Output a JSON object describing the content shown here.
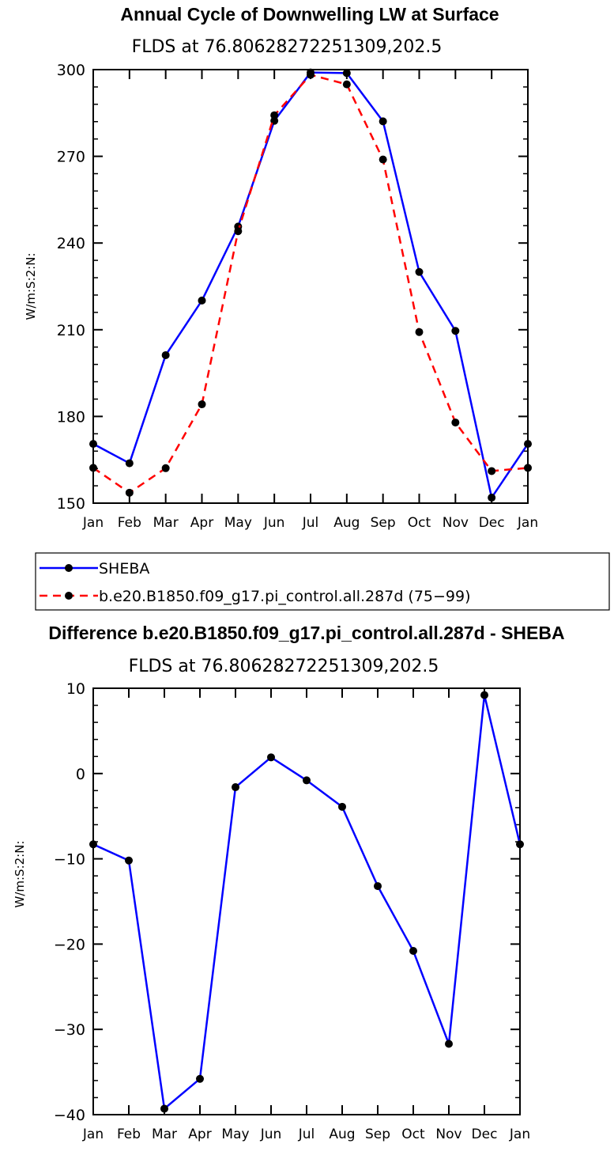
{
  "chart_data": [
    {
      "type": "line",
      "title": "Annual Cycle of Downwelling LW at Surface",
      "subtitle": "FLDS at 76.80628272251309,202.5",
      "ylabel": "W/m:S:2:N:",
      "xlabel": "",
      "categories": [
        "Jan",
        "Feb",
        "Mar",
        "Apr",
        "May",
        "Jun",
        "Jul",
        "Aug",
        "Sep",
        "Oct",
        "Nov",
        "Dec",
        "Jan"
      ],
      "ylim": [
        150,
        300
      ],
      "yticks": [
        "150",
        "180",
        "210",
        "240",
        "270",
        "300"
      ],
      "series": [
        {
          "name": "SHEBA",
          "color": "#0000ff",
          "style": "solid",
          "values": [
            170.5,
            163.8,
            201.2,
            220.1,
            245.7,
            282.3,
            299.0,
            298.8,
            282.1,
            230.0,
            209.6,
            151.9,
            170.5
          ]
        },
        {
          "name": "b.e20.B1850.f09_g17.pi_control.all.287d (75−99)",
          "color": "#ff0000",
          "style": "dashed",
          "values": [
            162.2,
            153.6,
            162.1,
            184.2,
            244.1,
            284.2,
            298.2,
            294.9,
            268.9,
            209.2,
            177.9,
            161.1,
            162.2
          ]
        }
      ],
      "legend": {
        "position": "below-plot"
      }
    },
    {
      "type": "line",
      "title": "Difference b.e20.B1850.f09_g17.pi_control.all.287d - SHEBA",
      "subtitle": "FLDS at 76.80628272251309,202.5",
      "ylabel": "W/m:S:2:N:",
      "xlabel": "",
      "categories": [
        "Jan",
        "Feb",
        "Mar",
        "Apr",
        "May",
        "Jun",
        "Jul",
        "Aug",
        "Sep",
        "Oct",
        "Nov",
        "Dec",
        "Jan"
      ],
      "ylim": [
        -40,
        10
      ],
      "yticks": [
        "−40",
        "−30",
        "−20",
        "−10",
        "0",
        "10"
      ],
      "series": [
        {
          "name": "Difference",
          "color": "#0000ff",
          "style": "solid",
          "values": [
            -8.3,
            -10.2,
            -39.3,
            -35.8,
            -1.6,
            1.9,
            -0.8,
            -3.9,
            -13.2,
            -20.8,
            -31.7,
            9.2,
            -8.3
          ]
        }
      ]
    }
  ]
}
